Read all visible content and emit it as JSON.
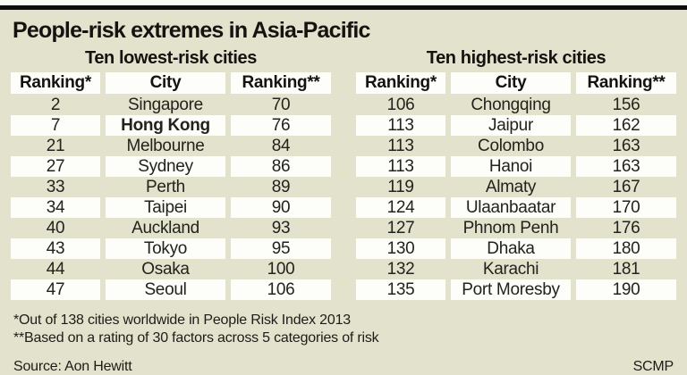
{
  "header": {
    "title": "People-risk extremes in Asia-Pacific"
  },
  "colors": {
    "background": "#e3e2cd",
    "cell_white": "#fdfdf9",
    "top_rule": "#0e0d0b",
    "text": "#14130f"
  },
  "chart_data": [
    {
      "type": "table",
      "subtitle": "Ten lowest-risk cities",
      "headers": [
        "Ranking*",
        "City",
        "Ranking**"
      ],
      "rows": [
        {
          "rank": 2,
          "city": "Singapore",
          "rating": 70
        },
        {
          "rank": 7,
          "city": "Hong Kong",
          "rating": 76,
          "bold": true
        },
        {
          "rank": 21,
          "city": "Melbourne",
          "rating": 84
        },
        {
          "rank": 27,
          "city": "Sydney",
          "rating": 86
        },
        {
          "rank": 33,
          "city": "Perth",
          "rating": 89
        },
        {
          "rank": 34,
          "city": "Taipei",
          "rating": 90
        },
        {
          "rank": 40,
          "city": "Auckland",
          "rating": 93
        },
        {
          "rank": 43,
          "city": "Tokyo",
          "rating": 95
        },
        {
          "rank": 44,
          "city": "Osaka",
          "rating": 100
        },
        {
          "rank": 47,
          "city": "Seoul",
          "rating": 106
        }
      ]
    },
    {
      "type": "table",
      "subtitle": "Ten highest-risk cities",
      "headers": [
        "Ranking*",
        "City",
        "Ranking**"
      ],
      "rows": [
        {
          "rank": 106,
          "city": "Chongqing",
          "rating": 156
        },
        {
          "rank": 113,
          "city": "Jaipur",
          "rating": 162
        },
        {
          "rank": 113,
          "city": "Colombo",
          "rating": 163
        },
        {
          "rank": 113,
          "city": "Hanoi",
          "rating": 163
        },
        {
          "rank": 119,
          "city": "Almaty",
          "rating": 167
        },
        {
          "rank": 124,
          "city": "Ulaanbaatar",
          "rating": 170
        },
        {
          "rank": 127,
          "city": "Phnom Penh",
          "rating": 176
        },
        {
          "rank": 130,
          "city": "Dhaka",
          "rating": 180
        },
        {
          "rank": 132,
          "city": "Karachi",
          "rating": 181
        },
        {
          "rank": 135,
          "city": "Port Moresby",
          "rating": 190
        }
      ]
    }
  ],
  "footnotes": [
    "*Out of 138 cities worldwide in People Risk Index 2013",
    "**Based on a rating of 30 factors across 5 categories of risk"
  ],
  "footer": {
    "source": "Source: Aon Hewitt",
    "credit": "SCMP"
  }
}
